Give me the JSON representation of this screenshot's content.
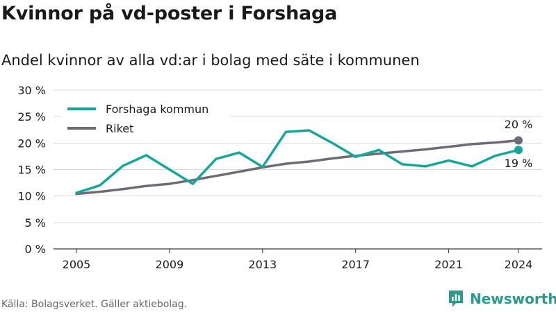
{
  "title": "Kvinnor på vd-poster i Forshaga",
  "subtitle": "Andel kvinnor av alla vd:ar i bolag med säte i kommunen",
  "source": "Källa: Bolagsverket. Gäller aktiebolag.",
  "brand": "Newsworthy",
  "colors": {
    "forshaga": "#15a79a",
    "riket": "#6f6b75",
    "grid": "#d9d9d9",
    "brand": "#2b9a8c"
  },
  "chart_data": {
    "type": "line",
    "x": [
      2005,
      2006,
      2007,
      2008,
      2009,
      2010,
      2011,
      2012,
      2013,
      2014,
      2015,
      2016,
      2017,
      2018,
      2019,
      2020,
      2021,
      2022,
      2023,
      2024
    ],
    "xticks": [
      2005,
      2009,
      2013,
      2017,
      2021,
      2024
    ],
    "ylim": [
      0,
      30
    ],
    "yticks": [
      0,
      5,
      10,
      15,
      20,
      25,
      30
    ],
    "ytick_labels": [
      "0 %",
      "5 %",
      "10 %",
      "15 %",
      "20 %",
      "25 %",
      "30 %"
    ],
    "legend_position": "top-left",
    "series": [
      {
        "name": "Forshaga kommun",
        "color": "#15a79a",
        "values": [
          10.6,
          12.0,
          15.7,
          17.7,
          15.0,
          12.3,
          17.0,
          18.2,
          15.5,
          22.1,
          22.4,
          20.0,
          17.4,
          18.7,
          16.0,
          15.6,
          16.7,
          15.6,
          17.6,
          18.7
        ],
        "end_label": "19 %"
      },
      {
        "name": "Riket",
        "color": "#6f6b75",
        "values": [
          10.4,
          10.8,
          11.3,
          11.9,
          12.3,
          13.0,
          13.8,
          14.6,
          15.4,
          16.1,
          16.5,
          17.1,
          17.6,
          18.0,
          18.4,
          18.8,
          19.3,
          19.8,
          20.1,
          20.5
        ],
        "end_label": "20 %"
      }
    ]
  }
}
